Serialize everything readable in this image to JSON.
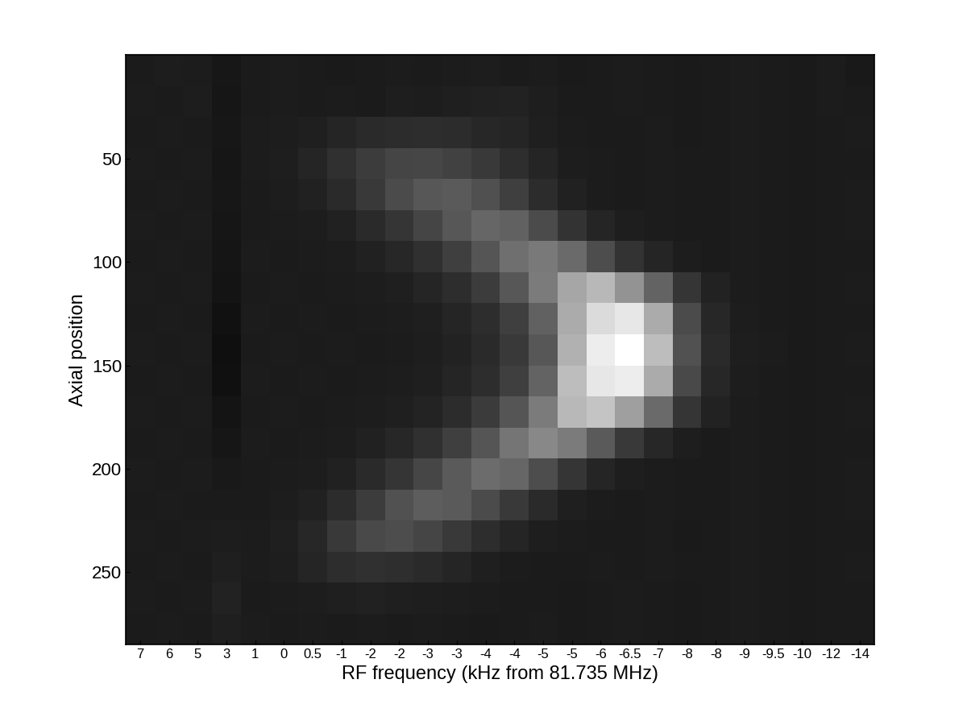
{
  "chart_data": {
    "type": "heatmap",
    "x_label": "RF frequency (kHz from 81.735 MHz)",
    "y_label": "Axial position",
    "categories": [
      "7",
      "6",
      "5",
      "3",
      "1",
      "0",
      "0.5",
      "-1",
      "-2",
      "-2",
      "-3",
      "-3",
      "-4",
      "-4",
      "-5",
      "-5",
      "-6",
      "-6.5",
      "-7",
      "-8",
      "-8",
      "-9",
      "-9.5",
      "-10",
      "-12",
      "-14"
    ],
    "row_edges": [
      0,
      15,
      30,
      45,
      60,
      75,
      90,
      105,
      120,
      135,
      150,
      165,
      180,
      195,
      210,
      225,
      240,
      255,
      270,
      285
    ],
    "cells": [
      [
        30,
        32,
        31,
        27,
        30,
        31,
        30,
        29,
        30,
        31,
        30,
        31,
        32,
        30,
        31,
        29,
        30,
        31,
        30,
        29,
        30,
        31,
        30,
        29,
        31,
        28
      ],
      [
        31,
        30,
        32,
        26,
        30,
        31,
        30,
        31,
        30,
        33,
        32,
        34,
        35,
        36,
        33,
        30,
        30,
        31,
        30,
        29,
        30,
        31,
        30,
        29,
        31,
        30
      ],
      [
        30,
        31,
        30,
        27,
        31,
        32,
        34,
        38,
        42,
        44,
        45,
        44,
        40,
        38,
        34,
        31,
        30,
        30,
        31,
        29,
        30,
        31,
        30,
        29,
        30,
        31
      ],
      [
        31,
        30,
        31,
        26,
        31,
        33,
        38,
        48,
        58,
        65,
        66,
        62,
        55,
        46,
        38,
        32,
        31,
        30,
        31,
        30,
        30,
        31,
        30,
        29,
        30,
        30
      ],
      [
        30,
        31,
        30,
        27,
        30,
        32,
        35,
        42,
        55,
        70,
        80,
        82,
        74,
        60,
        44,
        35,
        31,
        30,
        31,
        30,
        30,
        31,
        30,
        29,
        30,
        31
      ],
      [
        31,
        30,
        31,
        26,
        30,
        31,
        32,
        35,
        42,
        52,
        65,
        80,
        92,
        88,
        70,
        50,
        38,
        33,
        31,
        30,
        30,
        31,
        30,
        29,
        30,
        31
      ],
      [
        30,
        31,
        30,
        25,
        31,
        30,
        31,
        32,
        35,
        40,
        48,
        60,
        78,
        100,
        108,
        95,
        72,
        50,
        38,
        32,
        30,
        31,
        30,
        29,
        30,
        30
      ],
      [
        31,
        30,
        31,
        24,
        30,
        31,
        30,
        31,
        32,
        34,
        38,
        45,
        58,
        80,
        110,
        145,
        160,
        130,
        90,
        52,
        36,
        31,
        30,
        29,
        30,
        31
      ],
      [
        30,
        31,
        30,
        22,
        31,
        30,
        31,
        30,
        31,
        32,
        34,
        38,
        45,
        60,
        88,
        150,
        190,
        200,
        150,
        70,
        40,
        32,
        30,
        29,
        30,
        30
      ],
      [
        31,
        30,
        31,
        20,
        30,
        31,
        30,
        31,
        30,
        31,
        33,
        36,
        42,
        55,
        80,
        155,
        205,
        220,
        165,
        75,
        42,
        33,
        31,
        29,
        30,
        31
      ],
      [
        30,
        31,
        30,
        21,
        31,
        30,
        31,
        30,
        31,
        32,
        34,
        38,
        45,
        60,
        90,
        165,
        200,
        205,
        150,
        68,
        40,
        32,
        30,
        29,
        30,
        30
      ],
      [
        31,
        30,
        31,
        24,
        30,
        31,
        30,
        31,
        32,
        34,
        37,
        44,
        56,
        78,
        110,
        160,
        170,
        140,
        95,
        52,
        36,
        31,
        30,
        29,
        30,
        31
      ],
      [
        30,
        31,
        30,
        26,
        31,
        30,
        31,
        32,
        35,
        40,
        48,
        60,
        78,
        105,
        120,
        110,
        82,
        55,
        40,
        33,
        30,
        31,
        30,
        29,
        30,
        30
      ],
      [
        31,
        30,
        31,
        28,
        30,
        31,
        32,
        35,
        42,
        52,
        66,
        82,
        98,
        92,
        72,
        52,
        38,
        33,
        31,
        30,
        30,
        31,
        30,
        29,
        30,
        31
      ],
      [
        30,
        31,
        30,
        30,
        30,
        32,
        35,
        44,
        58,
        75,
        85,
        82,
        70,
        55,
        42,
        34,
        31,
        30,
        31,
        30,
        30,
        31,
        30,
        29,
        30,
        31
      ],
      [
        31,
        30,
        31,
        32,
        31,
        34,
        40,
        55,
        68,
        72,
        65,
        55,
        45,
        38,
        33,
        31,
        30,
        30,
        31,
        29,
        30,
        31,
        30,
        29,
        30,
        30
      ],
      [
        30,
        31,
        30,
        34,
        31,
        33,
        38,
        45,
        48,
        46,
        42,
        38,
        34,
        31,
        30,
        30,
        31,
        30,
        31,
        30,
        30,
        31,
        30,
        29,
        30,
        31
      ],
      [
        31,
        30,
        31,
        36,
        30,
        31,
        32,
        34,
        35,
        34,
        33,
        32,
        31,
        30,
        30,
        29,
        30,
        31,
        30,
        29,
        30,
        31,
        30,
        29,
        30,
        30
      ],
      [
        30,
        31,
        30,
        34,
        31,
        30,
        31,
        30,
        31,
        30,
        31,
        30,
        29,
        30,
        31,
        29,
        30,
        31,
        30,
        29,
        30,
        31,
        30,
        29,
        30,
        30
      ]
    ],
    "ylim": [
      285,
      0
    ],
    "yticks": [
      50,
      100,
      150,
      200,
      250
    ]
  }
}
